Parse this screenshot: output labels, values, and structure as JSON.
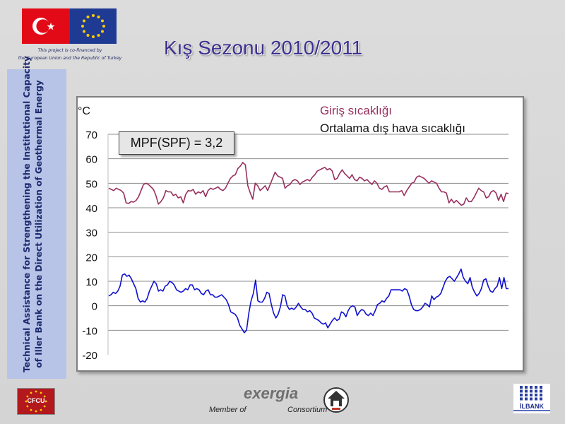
{
  "header": {
    "cofinance_line1": "This project is co-financed by",
    "cofinance_line2": "the European Union and the Republic of Turkey",
    "title": "Kış Sezonu 2010/2011"
  },
  "sidebar": {
    "line1": "Technical Assistance for Strengthening the Institutional Capacity",
    "line2": "of Iller Bank on the Direct Utilization of Geothermal Energy"
  },
  "annotation": {
    "mpf": "MPF(SPF) = 3,2"
  },
  "footer": {
    "cfcu": "CFCU",
    "exergia": "exergia",
    "member_of": "Member of",
    "consortium": "Consortium",
    "ilbank": "İLBANK"
  },
  "colors": {
    "title": "#3c2f8f",
    "inlet": "#98305e",
    "outdoor": "#1010d0",
    "panel": "#b7c4e8"
  },
  "chart_data": {
    "type": "line",
    "ylabel": "°C",
    "ylim": [
      -20,
      70
    ],
    "yticks": [
      -20,
      -10,
      0,
      10,
      20,
      30,
      40,
      50,
      60,
      70
    ],
    "grid": "horizontal",
    "legend_position": "top-right",
    "series": [
      {
        "name": "Giriş sıcaklığı",
        "color": "#98305e",
        "values": [
          48,
          47.5,
          47,
          48,
          47.5,
          47,
          46,
          42,
          41.8,
          42.5,
          42.3,
          43,
          44.5,
          47,
          49.5,
          50,
          49.5,
          48.5,
          47.5,
          45,
          41.5,
          42.5,
          44,
          47,
          46.5,
          46.5,
          45,
          45.5,
          44,
          44.5,
          42,
          45.5,
          47,
          46.8,
          47.5,
          45.5,
          46.5,
          46,
          47,
          44.5,
          47,
          48,
          47.5,
          48,
          48.5,
          47.5,
          47,
          48,
          50,
          52,
          53,
          53.5,
          56,
          57,
          58.5,
          57.5,
          49,
          46,
          43.5,
          50,
          49,
          47,
          48,
          49,
          47,
          49.5,
          52,
          54.5,
          53,
          52.5,
          52,
          48,
          49,
          49.5,
          51,
          51.5,
          51,
          49.5,
          50.5,
          51,
          51.5,
          51,
          52.5,
          53.5,
          55,
          55.5,
          56,
          56.5,
          55.5,
          56,
          55,
          51.5,
          52,
          54,
          55.5,
          54,
          53,
          52,
          53.5,
          51.5,
          51,
          52.5,
          52,
          51,
          51.5,
          50.5,
          49.5,
          51,
          50,
          48,
          47.5,
          48.5,
          49,
          46.5,
          46.5,
          46.5,
          46.5,
          46.5,
          47,
          45,
          47,
          48.5,
          50,
          50.5,
          52.5,
          53,
          52.5,
          52,
          51,
          50,
          51,
          50.5,
          50,
          48,
          46.5,
          46.5,
          46,
          42,
          43.5,
          42,
          43,
          42,
          41,
          41.5,
          44,
          42.5,
          42.5,
          44,
          46,
          48,
          47,
          46.5,
          44,
          44.5,
          46.5,
          47,
          46,
          43,
          45.5,
          42.5,
          46,
          45.8
        ]
      },
      {
        "name": "Ortalama dış hava sıcaklığı",
        "color": "#1010d0",
        "values": [
          4,
          4.5,
          5.5,
          5,
          6,
          8,
          12.5,
          13,
          12,
          12.5,
          11,
          9,
          7,
          3,
          1.5,
          2,
          1.5,
          3,
          6,
          8,
          10,
          9,
          6,
          6.5,
          6,
          8,
          8.5,
          10,
          9.5,
          8.5,
          6.5,
          6,
          5.5,
          6,
          7,
          6.5,
          8.5,
          8.5,
          6.5,
          7,
          6.5,
          5,
          4.5,
          6,
          6.5,
          4.5,
          4.5,
          3.5,
          3.5,
          4,
          4.5,
          3.5,
          2.5,
          0.5,
          -2.5,
          -3,
          -3.5,
          -5,
          -8,
          -9.5,
          -11,
          -10,
          -3,
          2,
          5,
          10.5,
          2,
          1.5,
          1.5,
          3,
          5.5,
          5,
          0.5,
          -3,
          -5,
          -3.5,
          -0.5,
          4.5,
          4,
          0,
          -1.5,
          -1,
          -1.5,
          -0.5,
          1,
          -0.5,
          -1.5,
          -1.5,
          -2.5,
          -2,
          -3,
          -5,
          -5.5,
          -6,
          -7,
          -7.5,
          -7,
          -9,
          -7.5,
          -6,
          -5,
          -6,
          -5.5,
          -2.5,
          -3,
          -4.5,
          -2,
          -0.5,
          0,
          -0.5,
          -4,
          -2.5,
          -1.5,
          -2,
          -3.5,
          -4,
          -3,
          -4,
          -2,
          0.5,
          1,
          2,
          1.5,
          3,
          4,
          6.5,
          6.5,
          6.5,
          6.5,
          6.5,
          6,
          7,
          6.5,
          4,
          0.5,
          -1.5,
          -2,
          -2,
          -1.5,
          -0.5,
          1,
          0.5,
          -0.5,
          4,
          2.5,
          3.5,
          4,
          5,
          7.5,
          10,
          11.5,
          12,
          11,
          10,
          11.5,
          13,
          15,
          11.5,
          10,
          9,
          11.5,
          7.5,
          5.5,
          4,
          5,
          7,
          10.5,
          11,
          8,
          6,
          5.5,
          7,
          8,
          11.5,
          7,
          11.5,
          7,
          7
        ]
      }
    ]
  }
}
